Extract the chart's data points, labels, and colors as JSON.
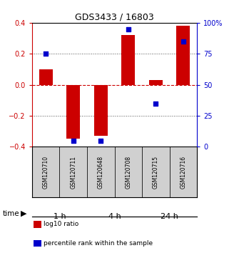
{
  "title": "GDS3433 / 16803",
  "samples": [
    "GSM120710",
    "GSM120711",
    "GSM120648",
    "GSM120708",
    "GSM120715",
    "GSM120716"
  ],
  "log10_ratio": [
    0.1,
    -0.35,
    -0.33,
    0.32,
    0.03,
    0.38
  ],
  "percentile_rank": [
    75,
    5,
    5,
    95,
    35,
    85
  ],
  "ylim_left": [
    -0.4,
    0.4
  ],
  "ylim_right": [
    0,
    100
  ],
  "yticks_left": [
    -0.4,
    -0.2,
    0.0,
    0.2,
    0.4
  ],
  "yticks_right": [
    0,
    25,
    50,
    75,
    100
  ],
  "ytick_labels_right": [
    "0",
    "25",
    "50",
    "75",
    "100%"
  ],
  "bar_color": "#cc0000",
  "dot_color": "#0000cc",
  "zero_line_color": "#cc0000",
  "grid_color": "#000000",
  "time_groups": [
    {
      "label": "1 h",
      "start": 0,
      "end": 2,
      "color": "#ccffcc"
    },
    {
      "label": "4 h",
      "start": 2,
      "end": 4,
      "color": "#88ee88"
    },
    {
      "label": "24 h",
      "start": 4,
      "end": 6,
      "color": "#44cc44"
    }
  ],
  "legend_entries": [
    {
      "label": "log10 ratio",
      "color": "#cc0000"
    },
    {
      "label": "percentile rank within the sample",
      "color": "#0000cc"
    }
  ],
  "xlabel_time": "time",
  "background_main": "#ffffff",
  "sample_box_color": "#d0d0d0"
}
